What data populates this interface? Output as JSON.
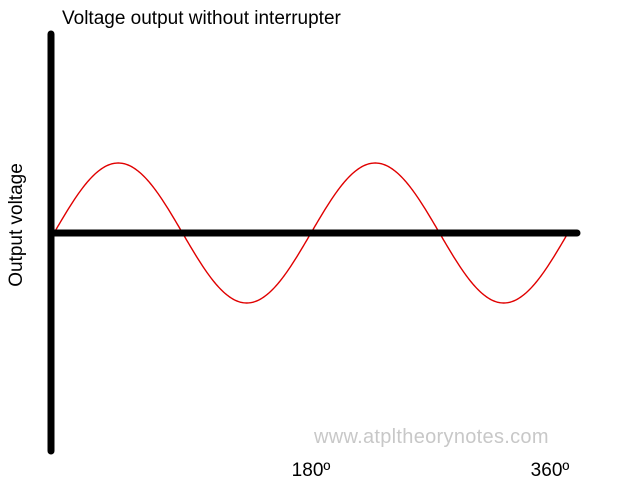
{
  "title": "Voltage output without interrupter",
  "ylabel": "Output voltage",
  "x_ticks": [
    "180º",
    "360º"
  ],
  "watermark": "www.atpltheorynotes.com",
  "colors": {
    "axes": "#000000",
    "wave": "#e00000",
    "watermark": "#c8c8c8"
  },
  "waveform": {
    "shape": "sine",
    "cycles": 2,
    "x_range_degrees": [
      0,
      360
    ]
  }
}
